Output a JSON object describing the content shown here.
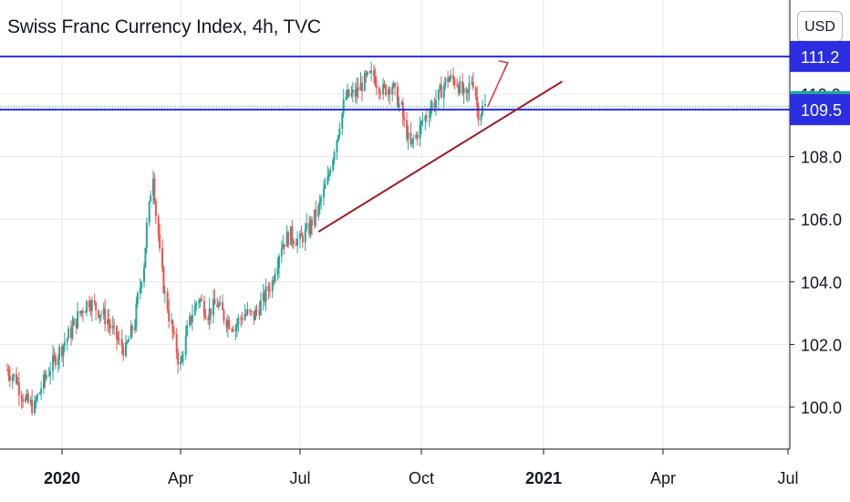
{
  "header": {
    "title": "Swiss Franc Currency Index, 4h, TVC",
    "currency_label": "USD"
  },
  "chart_data": {
    "type": "candlestick",
    "title": "Swiss Franc Currency Index, 4h, TVC",
    "x_ticks": [
      "2020",
      "Apr",
      "Jul",
      "Oct",
      "2021",
      "Apr",
      "Jul"
    ],
    "y_ticks": [
      "100.0",
      "102.0",
      "104.0",
      "106.0",
      "108.0",
      "110.0"
    ],
    "ylim": [
      98.6,
      112.8
    ],
    "price_badges": [
      {
        "label": "111.2",
        "value": 111.2,
        "kind": "line",
        "color": "#2a2ee0"
      },
      {
        "label": "109.6",
        "value": 109.6,
        "kind": "last",
        "color": "#26a69a"
      },
      {
        "label": "109.5",
        "value": 109.5,
        "kind": "line",
        "color": "#2a2ee0"
      }
    ],
    "horizontal_lines": [
      {
        "value": 111.2,
        "color": "#2a2ee0"
      },
      {
        "value": 109.5,
        "color": "#2a2ee0"
      }
    ],
    "last_price": 109.6,
    "trendline": {
      "from": [
        "2020-07-15",
        105.6
      ],
      "to": [
        "2021-01-15",
        110.4
      ],
      "color": "#a01c24"
    },
    "projection_arrow": {
      "from": [
        "2020-11-20",
        109.6
      ],
      "to": [
        "2020-12-05",
        111.0
      ],
      "color": "#e0303a"
    },
    "series": [
      {
        "key": "close",
        "points": [
          [
            "2019-11-20",
            101.2
          ],
          [
            "2019-11-27",
            100.9
          ],
          [
            "2019-12-04",
            100.2
          ],
          [
            "2019-12-11",
            100.0
          ],
          [
            "2019-12-18",
            100.8
          ],
          [
            "2019-12-25",
            101.4
          ],
          [
            "2020-01-01",
            101.9
          ],
          [
            "2020-01-08",
            102.4
          ],
          [
            "2020-01-15",
            103.0
          ],
          [
            "2020-01-22",
            103.4
          ],
          [
            "2020-01-29",
            103.1
          ],
          [
            "2020-02-05",
            102.8
          ],
          [
            "2020-02-12",
            102.2
          ],
          [
            "2020-02-19",
            101.8
          ],
          [
            "2020-02-26",
            102.7
          ],
          [
            "2020-03-04",
            104.6
          ],
          [
            "2020-03-11",
            107.5
          ],
          [
            "2020-03-18",
            104.2
          ],
          [
            "2020-03-25",
            102.6
          ],
          [
            "2020-04-01",
            101.3
          ],
          [
            "2020-04-08",
            102.7
          ],
          [
            "2020-04-15",
            103.5
          ],
          [
            "2020-04-22",
            103.0
          ],
          [
            "2020-04-29",
            103.3
          ],
          [
            "2020-05-06",
            102.8
          ],
          [
            "2020-05-13",
            102.6
          ],
          [
            "2020-05-20",
            103.0
          ],
          [
            "2020-05-27",
            102.9
          ],
          [
            "2020-06-03",
            103.4
          ],
          [
            "2020-06-10",
            104.0
          ],
          [
            "2020-06-17",
            105.2
          ],
          [
            "2020-06-24",
            105.5
          ],
          [
            "2020-07-01",
            105.3
          ],
          [
            "2020-07-08",
            105.7
          ],
          [
            "2020-07-15",
            106.3
          ],
          [
            "2020-07-22",
            107.2
          ],
          [
            "2020-07-29",
            108.6
          ],
          [
            "2020-08-05",
            109.9
          ],
          [
            "2020-08-12",
            110.0
          ],
          [
            "2020-08-19",
            110.4
          ],
          [
            "2020-08-26",
            110.6
          ],
          [
            "2020-09-02",
            110.1
          ],
          [
            "2020-09-09",
            110.3
          ],
          [
            "2020-09-16",
            109.5
          ],
          [
            "2020-09-23",
            108.3
          ],
          [
            "2020-09-30",
            108.9
          ],
          [
            "2020-10-07",
            109.5
          ],
          [
            "2020-10-14",
            109.9
          ],
          [
            "2020-10-21",
            110.5
          ],
          [
            "2020-10-28",
            110.4
          ],
          [
            "2020-11-04",
            109.8
          ],
          [
            "2020-11-09",
            110.6
          ],
          [
            "2020-11-13",
            109.4
          ],
          [
            "2020-11-18",
            109.6
          ]
        ]
      }
    ]
  }
}
